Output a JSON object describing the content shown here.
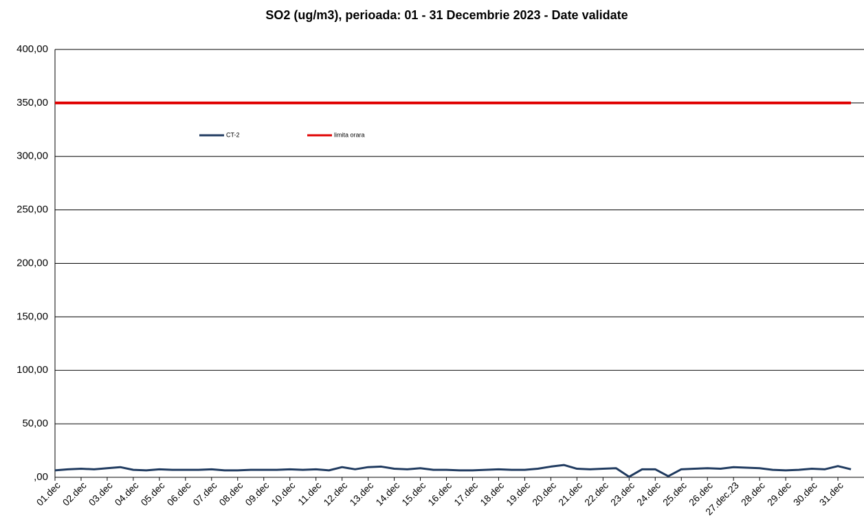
{
  "chart_data": {
    "type": "line",
    "title": "SO2 (ug/m3), perioada: 01 - 31 Decembrie 2023 - Date validate",
    "categories": [
      "01.dec",
      null,
      "02.dec",
      null,
      "03.dec",
      null,
      "04.dec",
      null,
      "05.dec",
      null,
      "06.dec",
      null,
      "07.dec",
      null,
      "08.dec",
      null,
      "09.dec",
      null,
      "10.dec",
      null,
      "11.dec",
      null,
      "12.dec",
      null,
      "13.dec",
      null,
      "14.dec",
      null,
      "15.dec",
      null,
      "16.dec",
      null,
      "17.dec",
      null,
      "18.dec",
      null,
      "19.dec",
      null,
      "20.dec",
      null,
      "21.dec",
      null,
      "22.dec",
      null,
      "23.dec",
      null,
      "24.dec",
      null,
      "25.dec",
      null,
      "26.dec",
      null,
      "27.dec.23",
      null,
      "28.dec",
      null,
      "29.dec",
      null,
      "30.dec",
      null,
      "31.dec",
      null
    ],
    "series": [
      {
        "name": "CT-2",
        "color": "#1f3a5f",
        "values": [
          6.5,
          7.5,
          8,
          7.5,
          8.5,
          9.5,
          7,
          6.5,
          7.5,
          7,
          7,
          7,
          7.5,
          6.5,
          6.5,
          7,
          7,
          7,
          7.5,
          7,
          7.5,
          6.5,
          9.5,
          7.5,
          9.5,
          10,
          8,
          7.5,
          8.5,
          7,
          7,
          6.5,
          6.5,
          7,
          7.5,
          7,
          7,
          8,
          10,
          11.5,
          8,
          7.5,
          8,
          8.5,
          0.5,
          7.5,
          7.5,
          1,
          7.5,
          8,
          8.5,
          8,
          9.5,
          9,
          8.5,
          7,
          6.5,
          7,
          8,
          7.5,
          10.5,
          7.5
        ]
      },
      {
        "name": "limita orara",
        "color": "#e00000",
        "values": [
          350,
          350,
          350,
          350,
          350,
          350,
          350,
          350,
          350,
          350,
          350,
          350,
          350,
          350,
          350,
          350,
          350,
          350,
          350,
          350,
          350,
          350,
          350,
          350,
          350,
          350,
          350,
          350,
          350,
          350,
          350,
          350,
          350,
          350,
          350,
          350,
          350,
          350,
          350,
          350,
          350,
          350,
          350,
          350,
          350,
          350,
          350,
          350,
          350,
          350,
          350,
          350,
          350,
          350,
          350,
          350,
          350,
          350,
          350,
          350,
          350,
          350
        ]
      }
    ],
    "ylim": [
      0,
      400
    ],
    "yticks": [
      {
        "value": 0,
        "label": ",00"
      },
      {
        "value": 50,
        "label": "50,00"
      },
      {
        "value": 100,
        "label": "100,00"
      },
      {
        "value": 150,
        "label": "150,00"
      },
      {
        "value": 200,
        "label": "200,00"
      },
      {
        "value": 250,
        "label": "250,00"
      },
      {
        "value": 300,
        "label": "300,00"
      },
      {
        "value": 350,
        "label": "350,00"
      },
      {
        "value": 400,
        "label": "400,00"
      }
    ],
    "grid": true
  }
}
